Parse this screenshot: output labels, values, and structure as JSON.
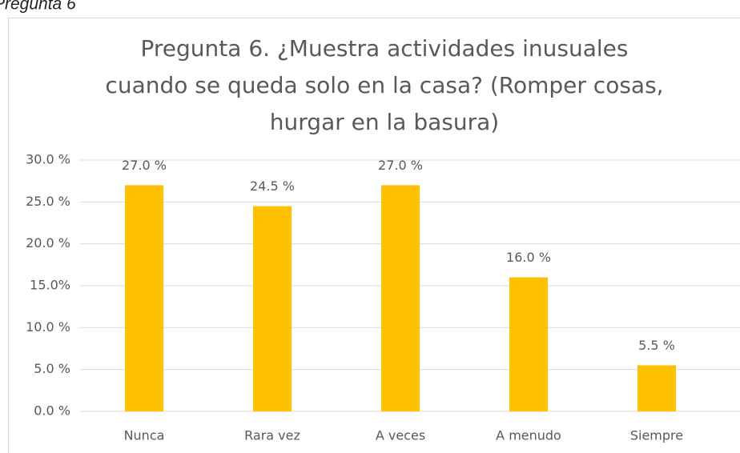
{
  "caption": "Pregunta 6",
  "chart_data": {
    "type": "bar",
    "title": [
      "Pregunta 6. ¿Muestra actividades inusuales",
      "cuando se queda solo en la casa? (Romper cosas,",
      "hurgar en la basura)"
    ],
    "categories": [
      "Nunca",
      "Rara vez",
      "A veces",
      "A menudo",
      "Siempre"
    ],
    "values": [
      27.0,
      24.5,
      27.0,
      16.0,
      5.5
    ],
    "value_labels": [
      "27.0 %",
      "24.5 %",
      "27.0 %",
      "16.0 %",
      "5.5 %"
    ],
    "color": "#ffc000",
    "ylim": [
      0,
      30
    ],
    "yticks": [
      {
        "value": 0,
        "label": "0.0 %"
      },
      {
        "value": 5,
        "label": "5.0 %"
      },
      {
        "value": 10,
        "label": "10.0 %"
      },
      {
        "value": 15,
        "label": "15.0%"
      },
      {
        "value": 20,
        "label": "20.0 %"
      },
      {
        "value": 25,
        "label": "25.0 %"
      },
      {
        "value": 30,
        "label": "30.0 %"
      }
    ],
    "grid": true
  }
}
